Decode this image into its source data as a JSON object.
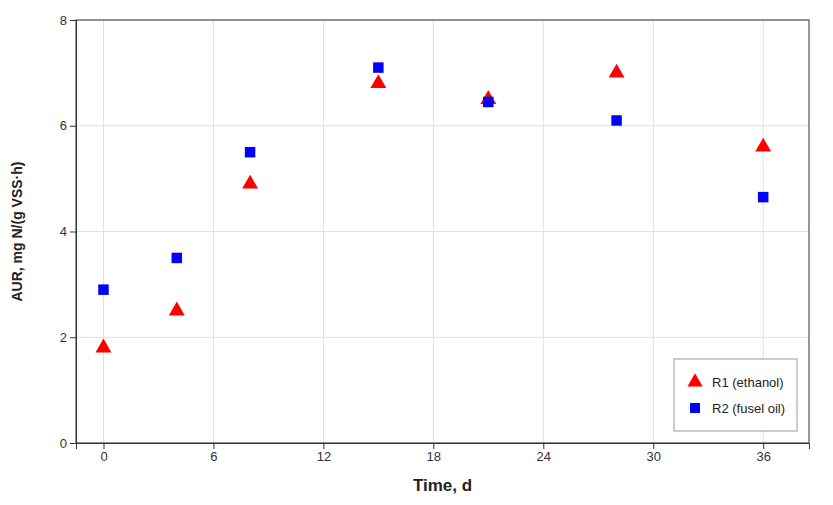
{
  "chart_data": {
    "type": "scatter",
    "xlabel": "Time, d",
    "ylabel": "AUR, mg N/(g VSS·h)",
    "xlim": [
      -1.5,
      38.5
    ],
    "ylim": [
      0,
      8
    ],
    "xticks": [
      0,
      6,
      12,
      18,
      24,
      30,
      36
    ],
    "yticks": [
      0,
      2,
      4,
      6,
      8
    ],
    "grid": true,
    "legend": "lower right",
    "series": [
      {
        "name": "R1 (ethanol)",
        "color": "#FF0000",
        "marker": "triangle",
        "x": [
          0,
          4,
          8,
          15,
          21,
          28,
          36
        ],
        "values": [
          1.8,
          2.5,
          4.9,
          6.8,
          6.5,
          7.0,
          5.6
        ]
      },
      {
        "name": "R2 (fusel oil)",
        "color": "#0000FF",
        "marker": "square",
        "x": [
          0,
          4,
          8,
          15,
          21,
          28,
          36
        ],
        "values": [
          2.9,
          3.5,
          5.5,
          7.1,
          6.45,
          6.1,
          4.65
        ]
      }
    ]
  }
}
